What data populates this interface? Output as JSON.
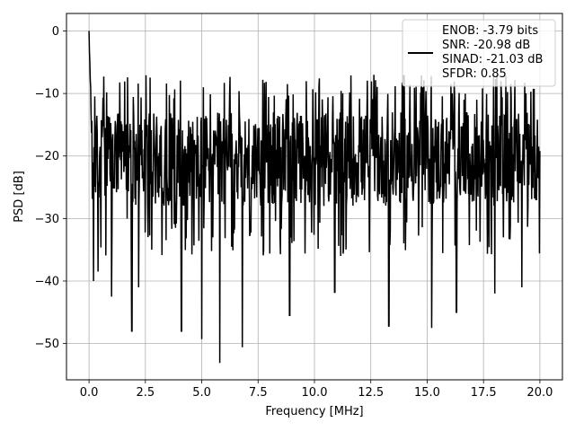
{
  "chart_data": {
    "type": "line",
    "xlabel": "Frequency [MHz]",
    "ylabel": "PSD [dB]",
    "xlim": [
      -1.0,
      21.0
    ],
    "ylim": [
      -55.8,
      2.8
    ],
    "xticks": [
      0.0,
      2.5,
      5.0,
      7.5,
      10.0,
      12.5,
      15.0,
      17.5,
      20.0
    ],
    "xtick_labels": [
      "0.0",
      "2.5",
      "5.0",
      "7.5",
      "10.0",
      "12.5",
      "15.0",
      "17.5",
      "20.0"
    ],
    "yticks": [
      0,
      -10,
      -20,
      -30,
      -40,
      -50
    ],
    "ytick_labels": [
      "0",
      "−10",
      "−20",
      "−30",
      "−40",
      "−50"
    ],
    "grid": true,
    "legend_position": "top-right",
    "line_color": "#000000",
    "series": [
      {
        "legend_lines": [
          "ENOB: -3.79 bits",
          "SNR: -20.98 dB",
          "SINAD: -21.03 dB",
          "SFDR: 0.85"
        ],
        "x_range": [
          0.0,
          20.0
        ],
        "peak": {
          "x": 0.0,
          "y": 0.0
        },
        "typical_band": [
          -28,
          -13
        ],
        "notable_dips": [
          {
            "x": 0.2,
            "y": -40.0
          },
          {
            "x": 0.4,
            "y": -38.5
          },
          {
            "x": 1.0,
            "y": -42.5
          },
          {
            "x": 1.9,
            "y": -48.0
          },
          {
            "x": 2.2,
            "y": -41.0
          },
          {
            "x": 4.1,
            "y": -48.0
          },
          {
            "x": 5.0,
            "y": -49.3
          },
          {
            "x": 5.8,
            "y": -53.1
          },
          {
            "x": 6.8,
            "y": -50.6
          },
          {
            "x": 8.9,
            "y": -45.5
          },
          {
            "x": 10.9,
            "y": -41.8
          },
          {
            "x": 13.3,
            "y": -47.2
          },
          {
            "x": 15.2,
            "y": -47.5
          },
          {
            "x": 16.3,
            "y": -45.0
          },
          {
            "x": 18.0,
            "y": -42.0
          },
          {
            "x": 19.2,
            "y": -41.0
          }
        ]
      }
    ]
  }
}
